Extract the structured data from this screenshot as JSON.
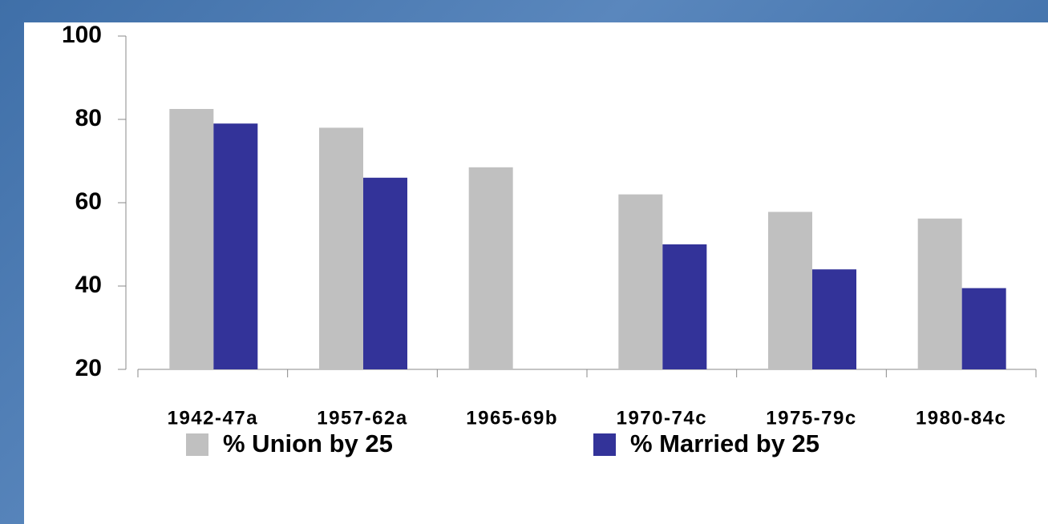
{
  "chart_data": {
    "type": "bar",
    "categories": [
      "1942-47a",
      "1957-62a",
      "1965-69b",
      "1970-74c",
      "1975-79c",
      "1980-84c"
    ],
    "series": [
      {
        "name": "% Union by 25",
        "color": "#c0c0c0",
        "values": [
          82.5,
          78,
          68.5,
          62,
          57.8,
          56.2
        ]
      },
      {
        "name": "% Married by 25",
        "color": "#333399",
        "values": [
          79,
          66,
          null,
          50,
          44,
          39.5
        ]
      }
    ],
    "ylim": [
      20,
      100
    ],
    "yticks": [
      20,
      40,
      60,
      80,
      100
    ],
    "grid": false,
    "legend": "bottom"
  }
}
